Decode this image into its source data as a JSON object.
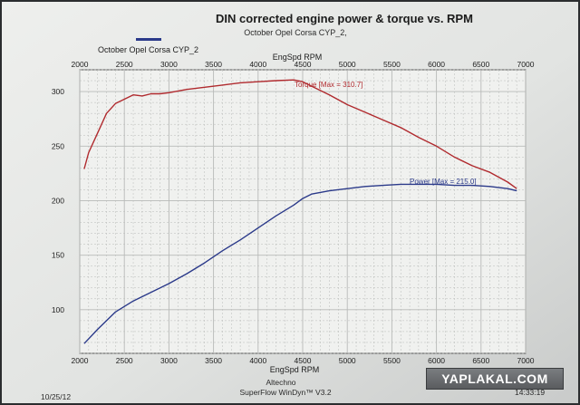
{
  "title": "DIN corrected engine power & torque vs. RPM",
  "subtitle": "October   Opel Corsa  CYP_2,",
  "legend": {
    "label": "October   Opel  Corsa  CYP_2",
    "color": "#2b3a8a"
  },
  "footer": {
    "date": "10/25/12",
    "company": "Altechno",
    "software": "SuperFlow WinDyn™ V3.2",
    "time": "14:33:19"
  },
  "watermark": "YAPLAKAL.COM",
  "colors": {
    "torque": "#b02a2e",
    "power": "#2b3a8a",
    "paper": "#e4e6e4",
    "grid": "#b8bab8"
  },
  "chart_data": {
    "type": "line",
    "title": "DIN corrected engine power & torque vs. RPM",
    "subtitle": "October   Opel Corsa  CYP_2,",
    "xlabel": "EngSpd RPM",
    "xlim": [
      2000,
      7000
    ],
    "ylim": [
      60,
      320
    ],
    "x_ticks": [
      2000,
      2500,
      3000,
      3500,
      4000,
      4500,
      5000,
      5500,
      6000,
      6500,
      7000
    ],
    "y_ticks": [
      100,
      150,
      200,
      250,
      300
    ],
    "grid": true,
    "legend_position": "top-left",
    "series": [
      {
        "name": "Torque",
        "label": "Torque [Max = 310.7]",
        "color": "#b02a2e",
        "x": [
          2050,
          2100,
          2200,
          2300,
          2400,
          2500,
          2600,
          2700,
          2800,
          2900,
          3000,
          3200,
          3400,
          3600,
          3800,
          4000,
          4200,
          4400,
          4500,
          4600,
          4800,
          5000,
          5200,
          5400,
          5600,
          5800,
          6000,
          6200,
          6400,
          6600,
          6800,
          6900
        ],
        "values": [
          229,
          244,
          262,
          280,
          289,
          293,
          297,
          296,
          298,
          298,
          299,
          302,
          304,
          306,
          308,
          309,
          310,
          310.7,
          309,
          305,
          297,
          288,
          281,
          274,
          267,
          258,
          250,
          240,
          232,
          226,
          217,
          211
        ]
      },
      {
        "name": "Power",
        "label": "Power [Max = 215.0]",
        "color": "#2b3a8a",
        "x": [
          2050,
          2200,
          2400,
          2600,
          2800,
          3000,
          3200,
          3400,
          3600,
          3800,
          4000,
          4200,
          4400,
          4500,
          4600,
          4800,
          5000,
          5200,
          5400,
          5600,
          5800,
          6000,
          6200,
          6400,
          6600,
          6800,
          6900
        ],
        "values": [
          69,
          82,
          98,
          108,
          116,
          124,
          133,
          143,
          154,
          164,
          175,
          186,
          196,
          202,
          206,
          209,
          211,
          213,
          214,
          215,
          215,
          215,
          214,
          214,
          213,
          211,
          209
        ]
      }
    ]
  }
}
